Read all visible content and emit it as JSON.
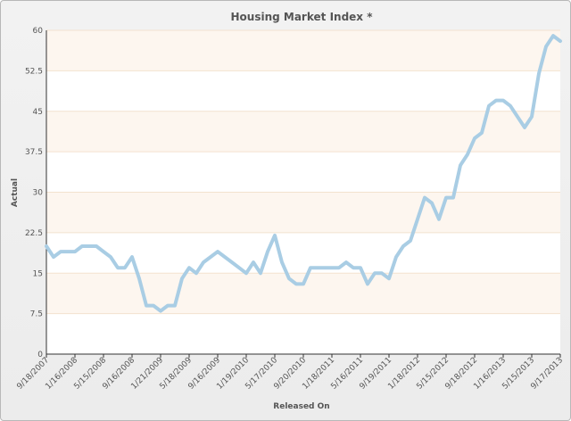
{
  "chart_data": {
    "type": "line",
    "title": "Housing Market Index *",
    "xlabel": "Released On",
    "ylabel": "Actual",
    "ylim": [
      0,
      60
    ],
    "yticks": [
      "0",
      "7.5",
      "15",
      "22.5",
      "30",
      "37.5",
      "45",
      "52.5",
      "60"
    ],
    "xticks": [
      "9/18/2007",
      "1/16/2008",
      "5/15/2008",
      "9/16/2008",
      "1/21/2009",
      "5/18/2009",
      "9/16/2009",
      "1/19/2010",
      "5/17/2010",
      "9/20/2010",
      "1/18/2011",
      "5/16/2011",
      "9/19/2011",
      "1/18/2012",
      "5/15/2012",
      "9/18/2012",
      "1/16/2013",
      "5/15/2013",
      "9/17/2013"
    ],
    "grid": true,
    "band_colors": [
      "#ffffff",
      "#fdf6ef"
    ],
    "line_color": "#a9cde4",
    "series": [
      {
        "values": [
          20,
          18,
          19,
          19,
          19,
          20,
          20,
          20,
          19,
          18,
          16,
          16,
          18,
          14,
          9,
          9,
          8,
          9,
          9,
          14,
          16,
          15,
          17,
          18,
          19,
          18,
          17,
          16,
          15,
          17,
          15,
          19,
          22,
          17,
          14,
          13,
          13,
          16,
          16,
          16,
          16,
          16,
          17,
          16,
          16,
          13,
          15,
          15,
          14,
          18,
          20,
          21,
          25,
          29,
          28,
          25,
          29,
          29,
          35,
          37,
          40,
          41,
          46,
          47,
          47,
          46,
          44,
          42,
          44,
          52,
          57,
          59,
          58
        ]
      }
    ]
  }
}
